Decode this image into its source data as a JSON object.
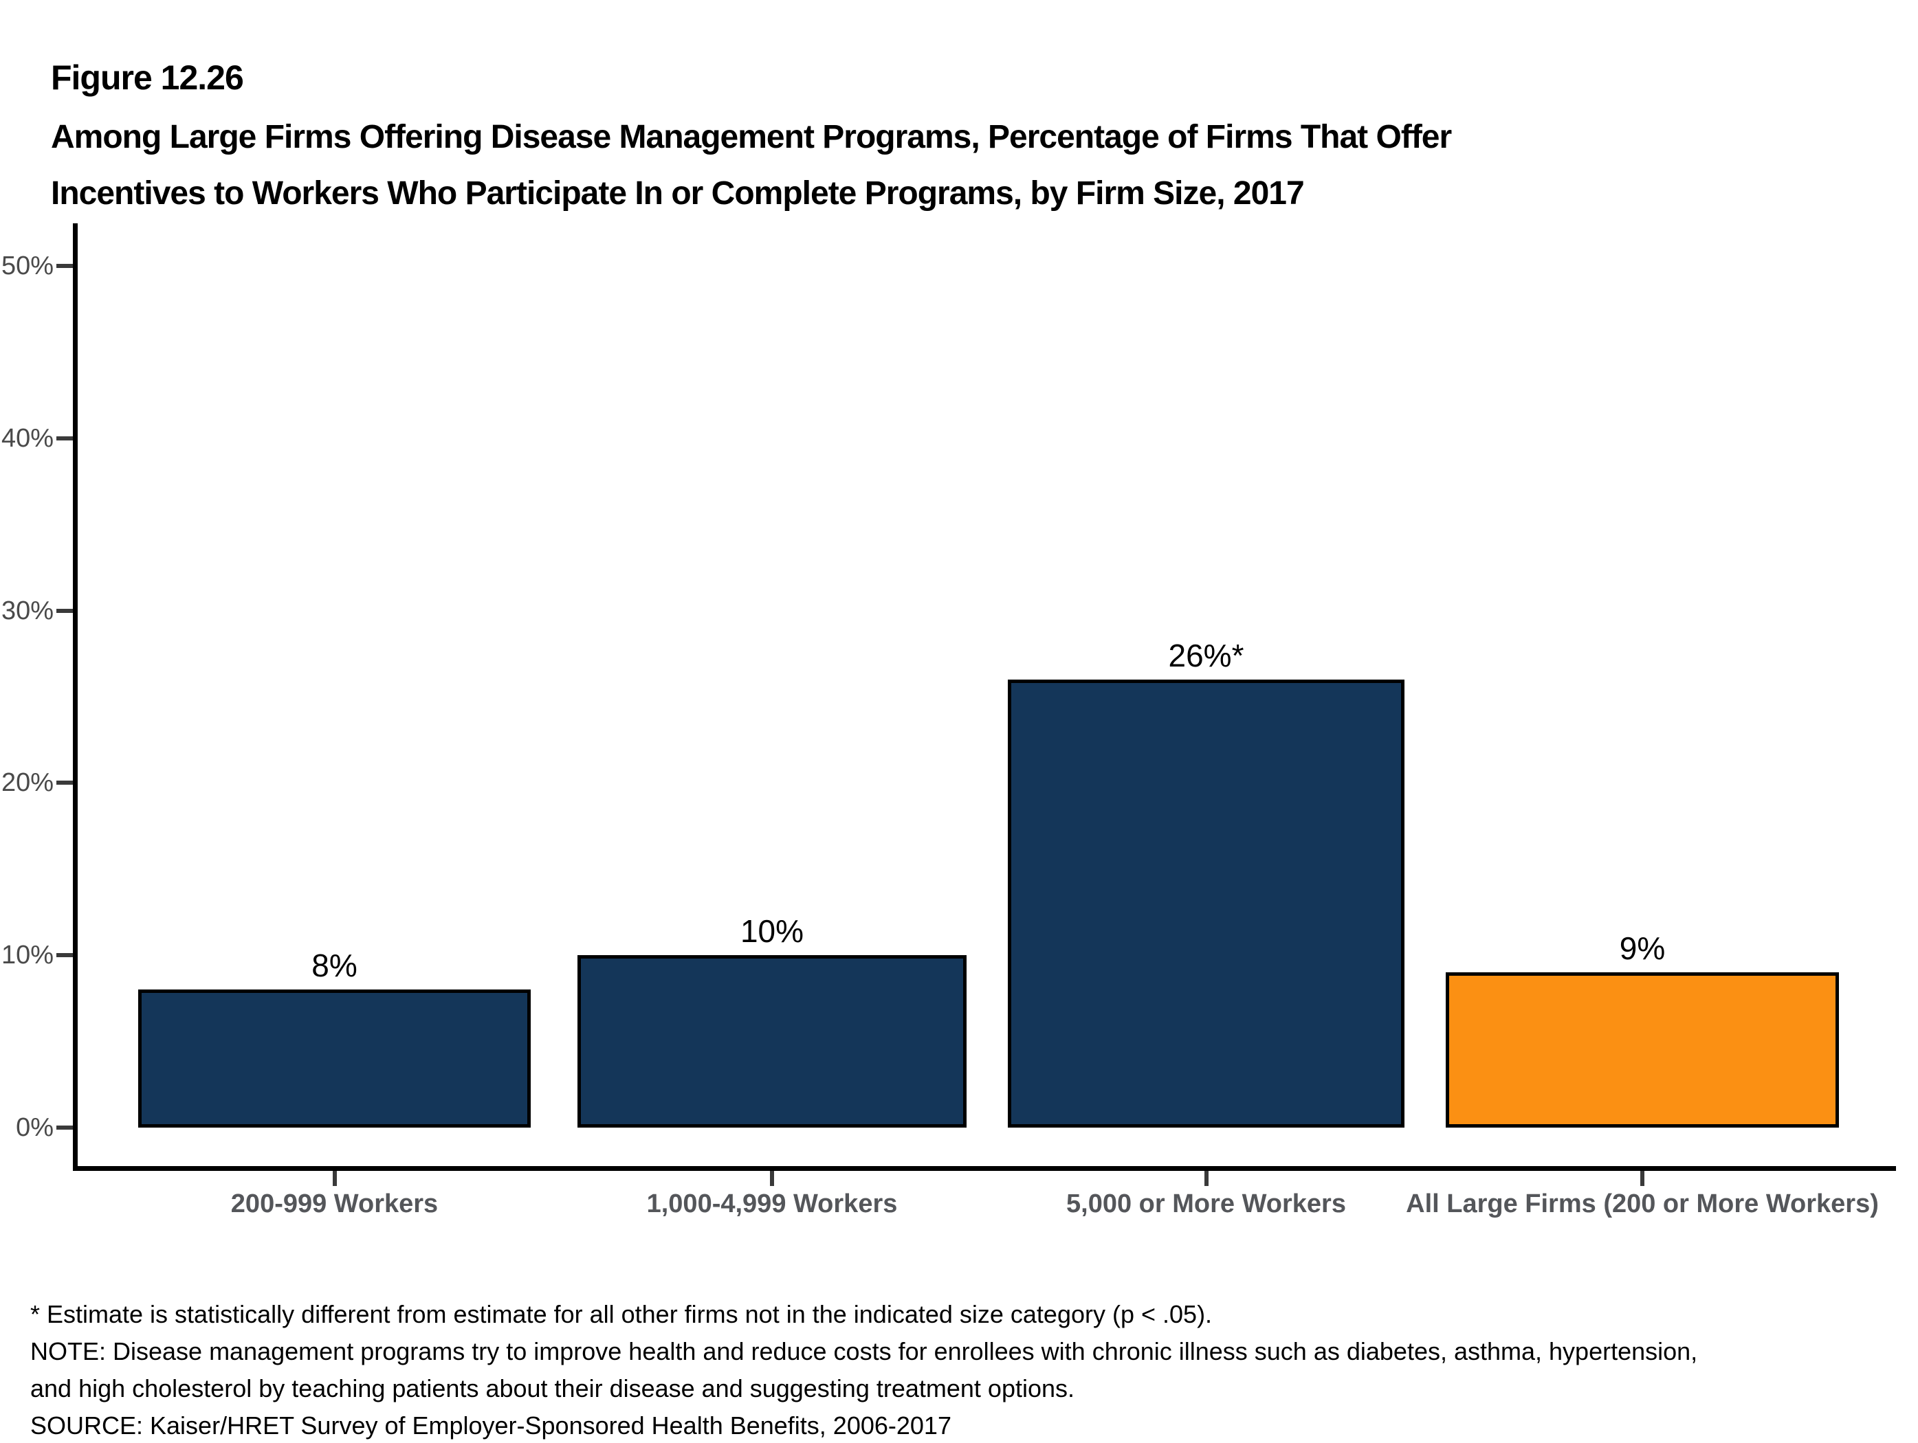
{
  "figure_label": "Figure 12.26",
  "title_lines": [
    "Among Large Firms Offering Disease Management Programs, Percentage of Firms That Offer",
    "Incentives to Workers Who Participate In or Complete Programs, by Firm Size, 2017"
  ],
  "chart_data": {
    "type": "bar",
    "title": "Among Large Firms Offering Disease Management Programs, Percentage of Firms That Offer Incentives to Workers Who Participate In or Complete Programs, by Firm Size, 2017",
    "categories": [
      "200-999 Workers",
      "1,000-4,999 Workers",
      "5,000 or More Workers",
      "All Large Firms (200 or More Workers)"
    ],
    "values": [
      8,
      10,
      26,
      9
    ],
    "bar_labels": [
      "8%",
      "10%",
      "26%*",
      "9%"
    ],
    "bar_colors": [
      "#143659",
      "#143659",
      "#143659",
      "#FB9013"
    ],
    "y_tick_labels": [
      "50%",
      "40%",
      "30%",
      "20%",
      "10%",
      "0%"
    ],
    "y_tick_values": [
      50,
      40,
      30,
      20,
      10,
      0
    ],
    "ylim": [
      0,
      52
    ],
    "xlabel": "",
    "ylabel": "",
    "grid": false,
    "legend_position": "none"
  },
  "colors": {
    "bar_navy": "#143659",
    "bar_orange": "#FB9013",
    "axis_black": "#000000",
    "y_tick_label_gray": "#4a4a4a",
    "category_label_gray": "#54565a"
  },
  "footnotes": [
    "* Estimate is statistically different from estimate for all other firms not in the indicated size category (p < .05).",
    "NOTE: Disease management programs try to improve health and reduce costs for enrollees with chronic illness such as diabetes, asthma, hypertension,",
    "and high cholesterol by teaching patients about their disease and suggesting treatment options.",
    "SOURCE: Kaiser/HRET Survey of Employer-Sponsored Health Benefits, 2006-2017"
  ]
}
